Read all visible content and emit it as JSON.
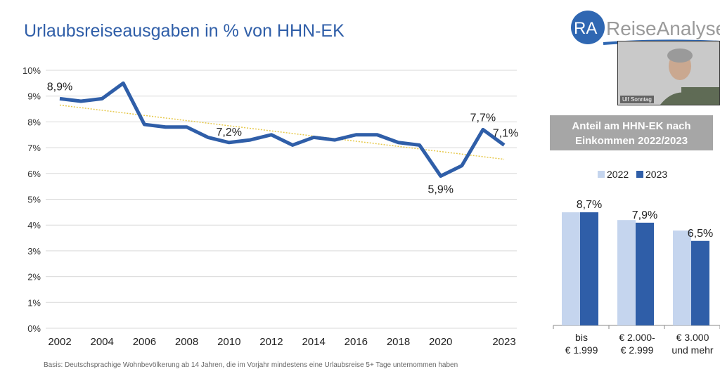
{
  "title": "Urlaubsreiseausgaben in % von HHN-EK",
  "footnote": "Basis: Deutschsprachige Wohnbevölkerung ab 14 Jahren, die im Vorjahr mindestens eine Urlaubsreise 5+ Tage unternommen haben",
  "logo": {
    "text": "RA ReiseAnalyse",
    "color": "#2f67b2"
  },
  "webcam": {
    "name": "Ulf Sonntag"
  },
  "colors": {
    "line": "#2f5ea8",
    "trend": "#e6c84a",
    "bar2022": "#c5d5ee",
    "bar2023": "#2f5ea8"
  },
  "chart_data": [
    {
      "type": "line",
      "title": "Urlaubsreiseausgaben in % von HHN-EK",
      "x": [
        2002,
        2003,
        2004,
        2005,
        2006,
        2007,
        2008,
        2009,
        2010,
        2011,
        2012,
        2013,
        2014,
        2015,
        2016,
        2017,
        2018,
        2019,
        2020,
        2021,
        2022,
        2023
      ],
      "series": [
        {
          "values": [
            8.9,
            8.8,
            8.9,
            9.5,
            7.9,
            7.8,
            7.8,
            7.4,
            7.2,
            7.3,
            7.5,
            7.1,
            7.4,
            7.3,
            7.5,
            7.5,
            7.2,
            7.1,
            5.9,
            6.3,
            7.7,
            7.1
          ]
        }
      ],
      "trendline": {
        "from": [
          2002,
          8.65
        ],
        "to": [
          2023,
          6.55
        ]
      },
      "data_labels": [
        {
          "x": 2002,
          "text": "8,9%"
        },
        {
          "x": 2010,
          "text": "7,2%"
        },
        {
          "x": 2020,
          "text": "5,9%"
        },
        {
          "x": 2022,
          "text": "7,7%"
        },
        {
          "x": 2023,
          "text": "7,1%"
        }
      ],
      "x_ticks": [
        "2002",
        "2004",
        "2006",
        "2008",
        "2010",
        "2012",
        "2014",
        "2016",
        "2018",
        "2020",
        "2023"
      ],
      "y_ticks": [
        "0%",
        "1%",
        "2%",
        "3%",
        "4%",
        "5%",
        "6%",
        "7%",
        "8%",
        "9%",
        "10%"
      ],
      "ylim": [
        0,
        10
      ],
      "grid": true
    },
    {
      "type": "bar",
      "title": "Anteil am HHN-EK nach Einkommen 2022/2023",
      "categories": [
        [
          "bis",
          "€ 1.999"
        ],
        [
          "€ 2.000-",
          "€ 2.999"
        ],
        [
          "€ 3.000",
          "und mehr"
        ]
      ],
      "series": [
        {
          "name": "2022",
          "values": [
            8.7,
            8.1,
            7.3
          ]
        },
        {
          "name": "2023",
          "values": [
            8.7,
            7.9,
            6.5
          ]
        }
      ],
      "data_labels": [
        "8,7%",
        "7,9%",
        "6,5%"
      ],
      "legend": "top"
    }
  ]
}
